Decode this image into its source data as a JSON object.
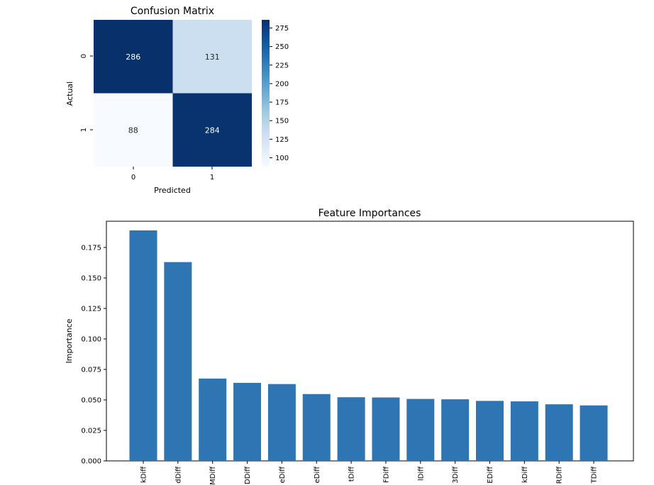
{
  "chart_data": [
    {
      "type": "heatmap",
      "title": "Confusion Matrix",
      "xlabel": "Predicted",
      "ylabel": "Actual",
      "x_categories": [
        "0",
        "1"
      ],
      "y_categories": [
        "0",
        "1"
      ],
      "values": [
        [
          286,
          131
        ],
        [
          88,
          284
        ]
      ],
      "colormap": "Blues",
      "colorbar_ticks": [
        "100",
        "125",
        "150",
        "175",
        "200",
        "225",
        "250",
        "275"
      ],
      "colorbar_range": [
        88,
        286
      ],
      "colors": {
        "high": "#08306b",
        "low": "#f7fbff"
      }
    },
    {
      "type": "bar",
      "title": "Feature Importances",
      "xlabel": "",
      "ylabel": "Importance",
      "categories": [
        "kDiff",
        "dDiff",
        "MDiff",
        "DDiff",
        "eDiff",
        "eDiff",
        "tDiff",
        "FDiff",
        "lDiff",
        "3Diff",
        "EDiff",
        "kDiff",
        "RDiff",
        "TDiff"
      ],
      "values": [
        0.189,
        0.163,
        0.0675,
        0.064,
        0.063,
        0.0548,
        0.0522,
        0.052,
        0.0508,
        0.0505,
        0.0492,
        0.0488,
        0.0464,
        0.0455
      ],
      "ylim": [
        0,
        0.1965
      ],
      "yticks": [
        "0.000",
        "0.025",
        "0.050",
        "0.075",
        "0.100",
        "0.125",
        "0.150",
        "0.175"
      ],
      "bar_color": "#2e75b3"
    }
  ]
}
